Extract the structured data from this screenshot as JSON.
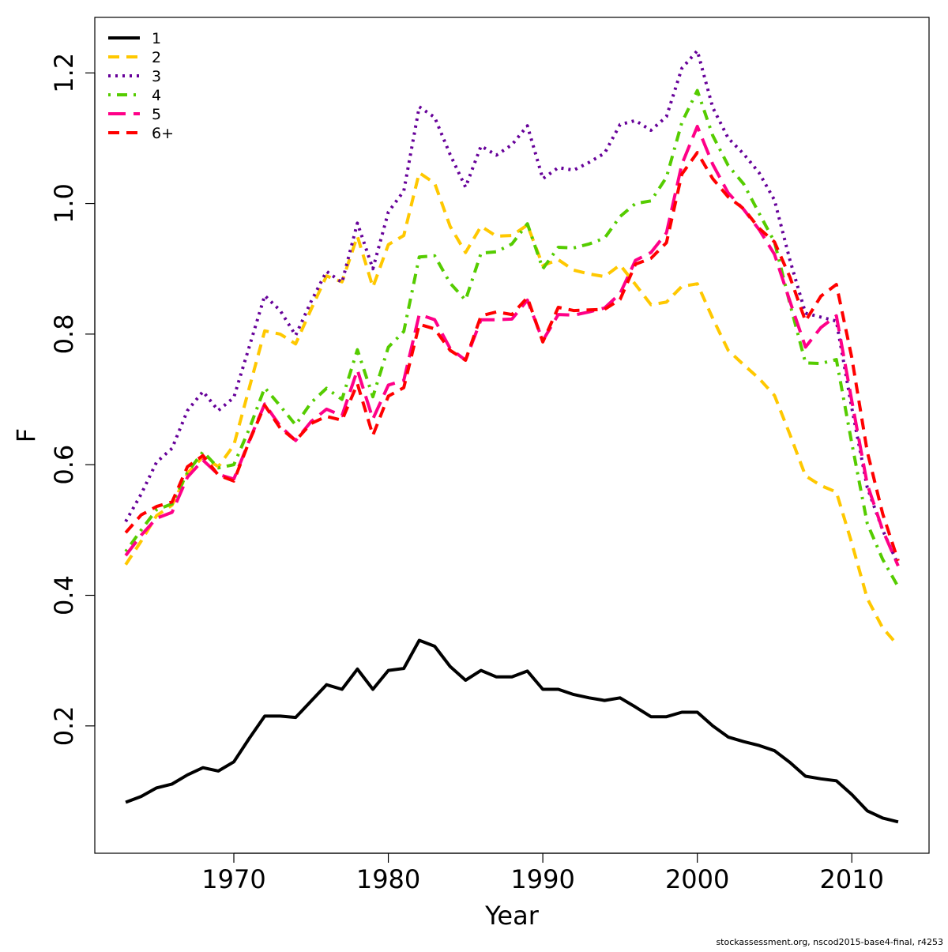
{
  "chart_data": {
    "type": "line",
    "title": "",
    "xlabel": "Year",
    "ylabel": "F",
    "xlim": [
      1961,
      2015
    ],
    "ylim": [
      0.005,
      1.285
    ],
    "xticks": [
      1970,
      1980,
      1990,
      2000,
      2010
    ],
    "yticks": [
      0.2,
      0.4,
      0.6,
      0.8,
      1.0,
      1.2
    ],
    "ytick_labels": [
      "0.2",
      "0.4",
      "0.6",
      "0.8",
      "1.0",
      "1.2"
    ],
    "legend_position": "top-left",
    "x": [
      1963,
      1964,
      1965,
      1966,
      1967,
      1968,
      1969,
      1970,
      1971,
      1972,
      1973,
      1974,
      1975,
      1976,
      1977,
      1978,
      1979,
      1980,
      1981,
      1982,
      1983,
      1984,
      1985,
      1986,
      1987,
      1988,
      1989,
      1990,
      1991,
      1992,
      1993,
      1994,
      1995,
      1996,
      1997,
      1998,
      1999,
      2000,
      2001,
      2002,
      2003,
      2004,
      2005,
      2006,
      2007,
      2008,
      2009,
      2010,
      2011,
      2012,
      2013
    ],
    "series": [
      {
        "name": "1",
        "color": "#000000",
        "dash": "solid",
        "values": [
          0.083,
          0.092,
          0.105,
          0.111,
          0.125,
          0.136,
          0.131,
          0.145,
          0.181,
          0.215,
          0.215,
          0.213,
          0.238,
          0.263,
          0.256,
          0.287,
          0.256,
          0.285,
          0.288,
          0.331,
          0.322,
          0.291,
          0.27,
          0.285,
          0.275,
          0.275,
          0.284,
          0.256,
          0.256,
          0.248,
          0.243,
          0.239,
          0.243,
          0.229,
          0.214,
          0.214,
          0.221,
          0.221,
          0.2,
          0.183,
          0.176,
          0.17,
          0.162,
          0.144,
          0.123,
          0.119,
          0.116,
          0.095,
          0.07,
          0.059,
          0.053
        ]
      },
      {
        "name": "2",
        "color": "#ffc800",
        "dash": "dashed",
        "values": [
          0.447,
          0.483,
          0.522,
          0.538,
          0.587,
          0.612,
          0.597,
          0.63,
          0.718,
          0.805,
          0.8,
          0.785,
          0.838,
          0.889,
          0.88,
          0.95,
          0.872,
          0.937,
          0.951,
          1.047,
          1.031,
          0.965,
          0.925,
          0.965,
          0.95,
          0.951,
          0.967,
          0.905,
          0.914,
          0.898,
          0.892,
          0.888,
          0.906,
          0.876,
          0.845,
          0.849,
          0.873,
          0.877,
          0.824,
          0.775,
          0.753,
          0.732,
          0.706,
          0.646,
          0.583,
          0.568,
          0.558,
          0.48,
          0.395,
          0.35,
          0.323
        ]
      },
      {
        "name": "3",
        "color": "#660099",
        "dash": "dotted",
        "values": [
          0.513,
          0.555,
          0.604,
          0.625,
          0.683,
          0.712,
          0.683,
          0.703,
          0.781,
          0.859,
          0.836,
          0.798,
          0.85,
          0.896,
          0.879,
          0.97,
          0.9,
          0.987,
          1.019,
          1.148,
          1.132,
          1.075,
          1.025,
          1.088,
          1.074,
          1.09,
          1.119,
          1.038,
          1.055,
          1.051,
          1.063,
          1.077,
          1.121,
          1.127,
          1.112,
          1.133,
          1.207,
          1.234,
          1.147,
          1.1,
          1.076,
          1.047,
          1.005,
          0.913,
          0.832,
          0.826,
          0.82,
          0.687,
          0.565,
          0.5,
          0.447
        ]
      },
      {
        "name": "4",
        "color": "#55cc00",
        "dash": "dashdot",
        "values": [
          0.467,
          0.5,
          0.531,
          0.54,
          0.588,
          0.62,
          0.595,
          0.6,
          0.655,
          0.718,
          0.69,
          0.661,
          0.695,
          0.717,
          0.7,
          0.776,
          0.704,
          0.78,
          0.804,
          0.918,
          0.92,
          0.878,
          0.852,
          0.924,
          0.926,
          0.938,
          0.969,
          0.9,
          0.933,
          0.932,
          0.938,
          0.947,
          0.98,
          1.0,
          1.004,
          1.04,
          1.124,
          1.173,
          1.104,
          1.058,
          1.03,
          0.985,
          0.941,
          0.846,
          0.756,
          0.755,
          0.761,
          0.633,
          0.51,
          0.455,
          0.413
        ]
      },
      {
        "name": "5",
        "color": "#ff0088",
        "dash": "longdash",
        "values": [
          0.461,
          0.492,
          0.518,
          0.527,
          0.581,
          0.607,
          0.585,
          0.578,
          0.637,
          0.693,
          0.659,
          0.637,
          0.666,
          0.685,
          0.675,
          0.745,
          0.67,
          0.722,
          0.729,
          0.83,
          0.822,
          0.778,
          0.76,
          0.822,
          0.822,
          0.823,
          0.852,
          0.79,
          0.83,
          0.829,
          0.834,
          0.84,
          0.862,
          0.913,
          0.925,
          0.955,
          1.06,
          1.118,
          1.06,
          1.016,
          0.991,
          0.96,
          0.922,
          0.85,
          0.78,
          0.81,
          0.828,
          0.698,
          0.57,
          0.5,
          0.445
        ]
      },
      {
        "name": "6+",
        "color": "#ff0000",
        "dash": "dashed",
        "values": [
          0.496,
          0.523,
          0.536,
          0.543,
          0.597,
          0.614,
          0.584,
          0.575,
          0.636,
          0.691,
          0.656,
          0.637,
          0.663,
          0.674,
          0.668,
          0.724,
          0.645,
          0.705,
          0.718,
          0.815,
          0.808,
          0.775,
          0.76,
          0.828,
          0.834,
          0.83,
          0.856,
          0.788,
          0.841,
          0.836,
          0.837,
          0.838,
          0.853,
          0.907,
          0.916,
          0.94,
          1.045,
          1.078,
          1.038,
          1.01,
          0.992,
          0.962,
          0.941,
          0.887,
          0.82,
          0.858,
          0.876,
          0.764,
          0.62,
          0.525,
          0.453
        ]
      }
    ]
  },
  "footer_text": "stockassessment.org, nscod2015-base4-final, r4253"
}
